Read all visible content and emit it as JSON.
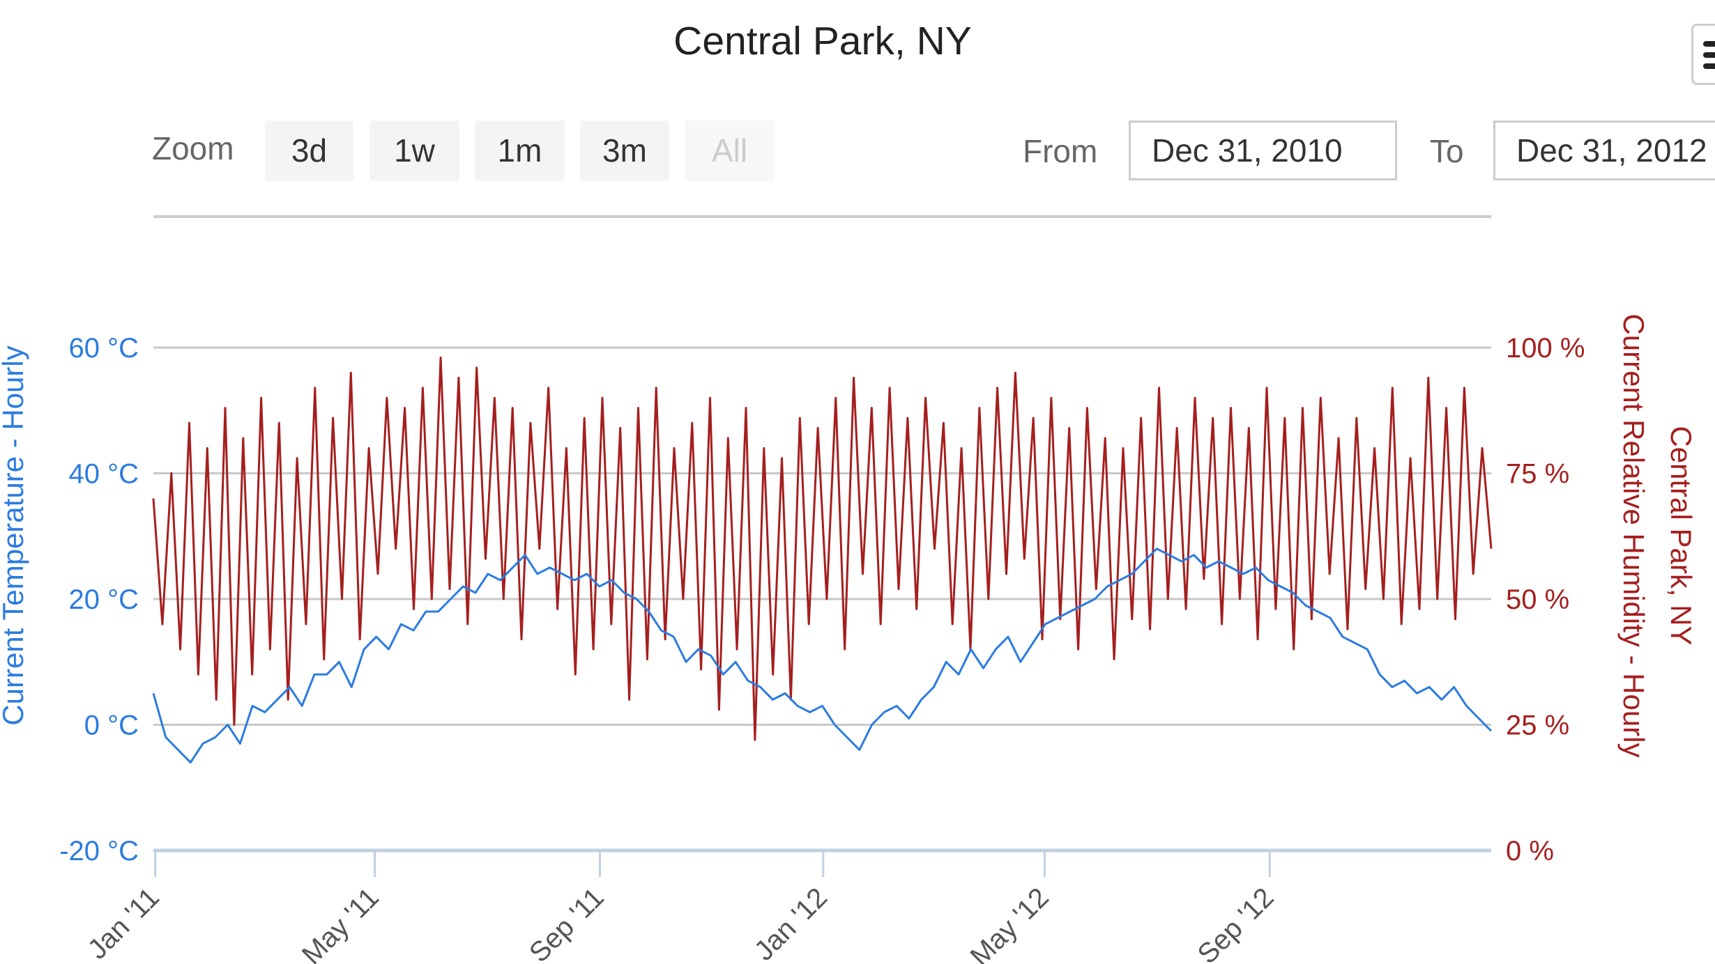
{
  "chart_data": {
    "type": "line",
    "title": "Central Park, NY",
    "x_start": "2010-12-31",
    "x_end": "2012-12-31",
    "x_ticks": [
      "Jan '11",
      "May '11",
      "Sep '11",
      "Jan '12",
      "May '12",
      "Sep '12"
    ],
    "x_tick_dates": [
      "2011-01-01",
      "2011-05-01",
      "2011-09-01",
      "2012-01-01",
      "2012-05-01",
      "2012-09-01"
    ],
    "y_left": {
      "label": "Current Temperature - Hourly",
      "range": [
        -20,
        60
      ],
      "ticks": [
        "-20 °C",
        "0 °C",
        "20 °C",
        "40 °C",
        "60 °C"
      ],
      "color": "#2b7ce0"
    },
    "y_right": {
      "label": "Current Relative Humidity - Hourly",
      "sublabel": "Central Park, NY",
      "range": [
        0,
        100
      ],
      "ticks": [
        "0 %",
        "25 %",
        "50 %",
        "75 %",
        "100 %"
      ],
      "color": "#a51f1f"
    },
    "grid": true,
    "series": [
      {
        "axis": "left",
        "color": "#2b7ce0",
        "values": [
          5,
          -2,
          -4,
          -6,
          -3,
          -2,
          0,
          -3,
          3,
          2,
          4,
          6,
          3,
          8,
          8,
          10,
          6,
          12,
          14,
          12,
          16,
          15,
          18,
          18,
          20,
          22,
          21,
          24,
          23,
          25,
          27,
          24,
          25,
          24,
          23,
          24,
          22,
          23,
          21,
          20,
          18,
          15,
          14,
          10,
          12,
          11,
          8,
          10,
          7,
          6,
          4,
          5,
          3,
          2,
          3,
          0,
          -2,
          -4,
          0,
          2,
          3,
          1,
          4,
          6,
          10,
          8,
          12,
          9,
          12,
          14,
          10,
          13,
          16,
          17,
          18,
          19,
          20,
          22,
          23,
          24,
          26,
          28,
          27,
          26,
          27,
          25,
          26,
          25,
          24,
          25,
          23,
          22,
          21,
          19,
          18,
          17,
          14,
          13,
          12,
          8,
          6,
          7,
          5,
          6,
          4,
          6,
          3,
          1,
          -1
        ]
      },
      {
        "axis": "right",
        "color": "#a51f1f",
        "values": [
          70,
          45,
          75,
          40,
          85,
          35,
          80,
          30,
          88,
          25,
          82,
          35,
          90,
          40,
          85,
          30,
          78,
          45,
          92,
          38,
          86,
          50,
          95,
          42,
          80,
          55,
          90,
          60,
          88,
          48,
          92,
          50,
          98,
          52,
          94,
          45,
          96,
          58,
          90,
          50,
          88,
          42,
          85,
          60,
          92,
          48,
          80,
          35,
          86,
          40,
          90,
          45,
          84,
          30,
          88,
          38,
          92,
          42,
          80,
          50,
          85,
          36,
          90,
          28,
          82,
          40,
          88,
          22,
          80,
          35,
          78,
          30,
          86,
          45,
          84,
          50,
          90,
          40,
          94,
          55,
          88,
          45,
          92,
          52,
          86,
          48,
          90,
          60,
          85,
          45,
          80,
          40,
          88,
          50,
          92,
          55,
          95,
          58,
          86,
          42,
          90,
          46,
          84,
          40,
          88,
          52,
          82,
          38,
          80,
          46,
          86,
          44,
          92,
          50,
          84,
          48,
          90,
          54,
          86,
          45,
          88,
          50,
          84,
          42,
          92,
          48,
          86,
          40,
          88,
          46,
          90,
          55,
          82,
          44,
          86,
          52,
          80,
          50,
          92,
          45,
          78,
          48,
          94,
          50,
          88,
          46,
          92,
          55,
          80,
          60
        ]
      }
    ]
  },
  "range_selector": {
    "zoom_label": "Zoom",
    "buttons": [
      "3d",
      "1w",
      "1m",
      "3m",
      "All"
    ],
    "selected": "All",
    "from_label": "From",
    "from_value": "Dec 31, 2010",
    "to_label": "To",
    "to_value": "Dec 31, 2012"
  },
  "icons": {
    "menu": "hamburger-menu-icon"
  }
}
